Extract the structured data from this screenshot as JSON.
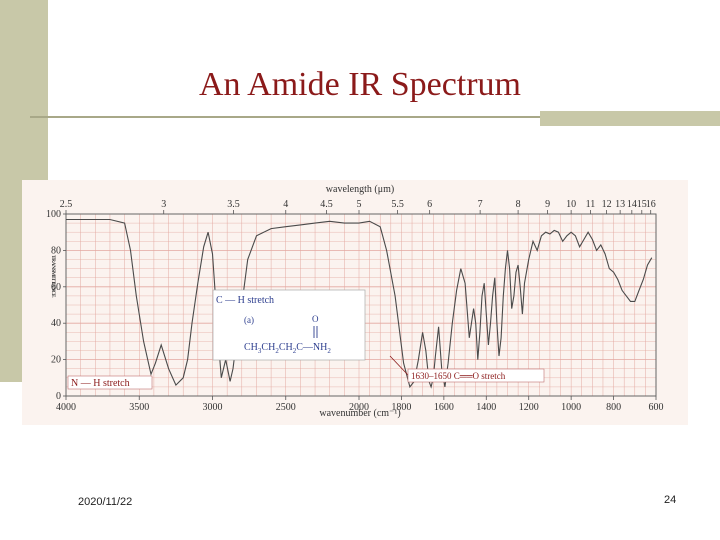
{
  "slide": {
    "title": "An Amide IR Spectrum",
    "date": "2020/11/22",
    "page": "24"
  },
  "colors": {
    "title": "#8b1a1a",
    "accent_bar": "#c8c8a8",
    "grid": "#e3a8a0",
    "trace": "#4a4a4a",
    "callout": "#8b1a1a",
    "structure": "#2e3f8f"
  },
  "chart_data": {
    "type": "line",
    "title": "",
    "top_axis_label": "wavelength (μm)",
    "top_tick_labels": [
      "2.5",
      "3",
      "3.5",
      "4",
      "4.5",
      "5",
      "5.5",
      "6",
      "7",
      "8",
      "9",
      "10",
      "11",
      "12",
      "13",
      "14",
      "15",
      "16"
    ],
    "top_tick_wavenumbers": [
      4000,
      3333,
      2857,
      2500,
      2222,
      2000,
      1818,
      1667,
      1429,
      1250,
      1111,
      1000,
      909,
      833,
      769,
      714,
      667,
      625
    ],
    "xlabel": "wavenumber (cm⁻¹)",
    "x_tick_labels": [
      "4000",
      "3500",
      "3000",
      "2500",
      "2000",
      "1800",
      "1600",
      "1400",
      "1200",
      "1000",
      "800",
      "600"
    ],
    "x_tick_values": [
      4000,
      3500,
      3000,
      2500,
      2000,
      1800,
      1600,
      1400,
      1200,
      1000,
      800,
      600
    ],
    "xlim": [
      4000,
      600
    ],
    "ylabel": "TRANSMITTANCE",
    "y_tick_values": [
      0,
      20,
      40,
      60,
      80,
      100
    ],
    "ylim": [
      0,
      100
    ],
    "grid": true,
    "series": [
      {
        "x": [
          4000,
          3700,
          3600,
          3560,
          3520,
          3470,
          3420,
          3390,
          3350,
          3300,
          3250,
          3200,
          3170,
          3140,
          3100,
          3060,
          3030,
          3000,
          2980,
          2960,
          2940,
          2910,
          2880,
          2860,
          2840,
          2800,
          2760,
          2700,
          2600,
          2500,
          2400,
          2300,
          2200,
          2100,
          2000,
          1950,
          1900,
          1870,
          1830,
          1790,
          1760,
          1740,
          1720,
          1700,
          1685,
          1670,
          1660,
          1650,
          1640,
          1625,
          1610,
          1595,
          1580,
          1560,
          1540,
          1520,
          1500,
          1480,
          1460,
          1450,
          1440,
          1430,
          1420,
          1410,
          1400,
          1390,
          1380,
          1370,
          1360,
          1350,
          1340,
          1330,
          1320,
          1310,
          1300,
          1290,
          1280,
          1270,
          1260,
          1250,
          1240,
          1230,
          1220,
          1200,
          1180,
          1160,
          1140,
          1120,
          1100,
          1080,
          1060,
          1040,
          1020,
          1000,
          980,
          960,
          940,
          920,
          900,
          880,
          860,
          840,
          820,
          800,
          780,
          760,
          740,
          720,
          700,
          680,
          660,
          640,
          620
        ],
        "y": [
          97,
          97,
          95,
          80,
          55,
          30,
          12,
          18,
          28,
          15,
          6,
          10,
          20,
          40,
          62,
          82,
          90,
          78,
          55,
          30,
          10,
          20,
          8,
          15,
          28,
          50,
          75,
          88,
          92,
          93,
          94,
          95,
          96,
          95,
          95,
          96,
          93,
          80,
          55,
          18,
          5,
          8,
          20,
          35,
          25,
          8,
          5,
          10,
          22,
          38,
          15,
          5,
          18,
          40,
          58,
          70,
          62,
          32,
          48,
          40,
          20,
          35,
          55,
          62,
          45,
          28,
          40,
          55,
          65,
          40,
          22,
          32,
          55,
          70,
          80,
          70,
          48,
          55,
          68,
          72,
          60,
          45,
          62,
          75,
          85,
          80,
          88,
          90,
          89,
          91,
          90,
          85,
          88,
          90,
          88,
          82,
          86,
          90,
          86,
          80,
          83,
          78,
          70,
          68,
          64,
          58,
          55,
          52,
          52,
          58,
          64,
          72,
          76
        ]
      }
    ],
    "annotations": [
      "C — H stretch",
      "N — H stretch",
      "1630–1650 C══O stretch",
      "(a)"
    ],
    "structure": {
      "prefix": "CH",
      "sub1": "3",
      "mid1": "CH",
      "sub2": "2",
      "mid2": "CH",
      "sub3": "2",
      "carbon": "C",
      "bond": "—",
      "amine": "NH",
      "sub4": "2",
      "oxygen": "O"
    }
  }
}
